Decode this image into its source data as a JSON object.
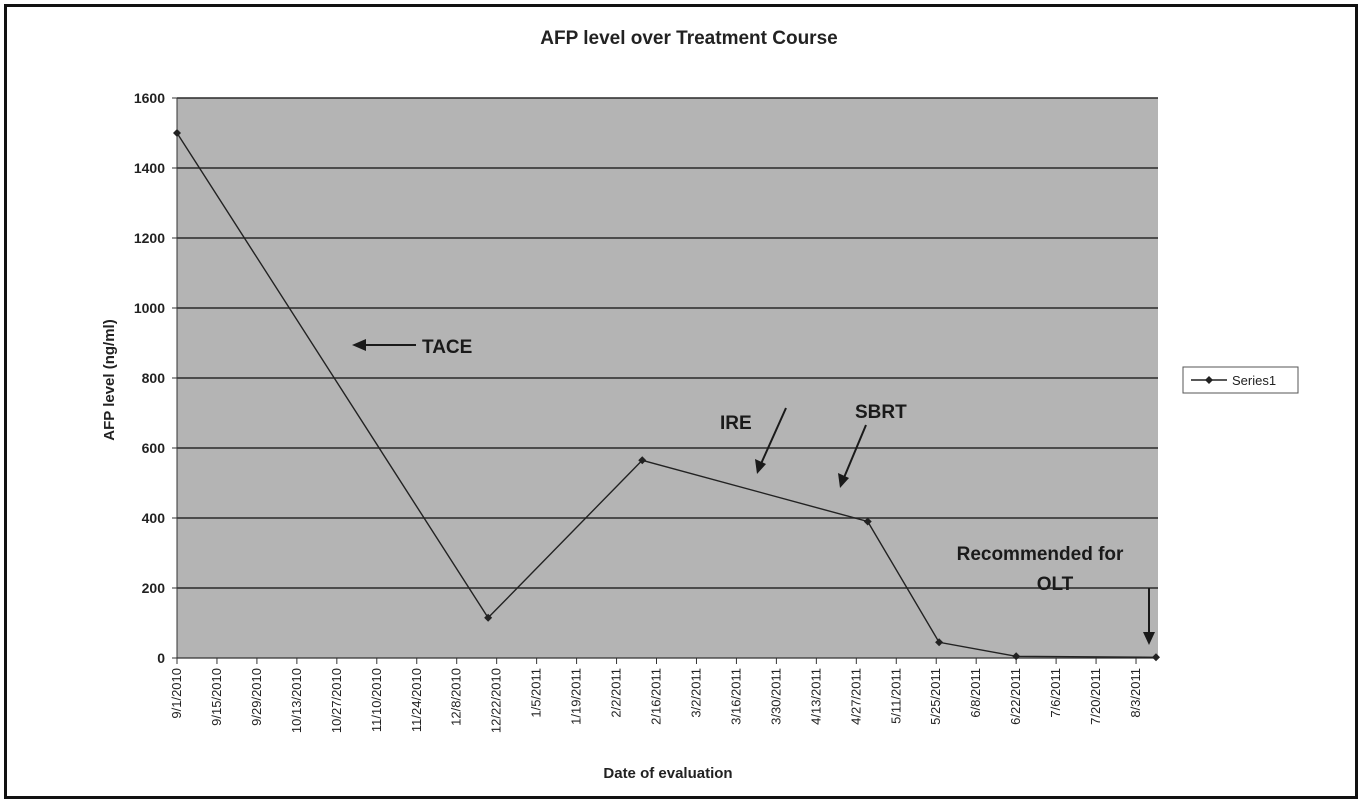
{
  "chart_data": {
    "type": "line",
    "title": "AFP level over Treatment Course",
    "xlabel": "Date of evaluation",
    "ylabel": "AFP level (ng/ml)",
    "ylim": [
      0,
      1600
    ],
    "yticks": [
      0,
      200,
      400,
      600,
      800,
      1000,
      1200,
      1400,
      1600
    ],
    "x_tick_labels": [
      "9/1/2010",
      "9/15/2010",
      "9/29/2010",
      "10/13/2010",
      "10/27/2010",
      "11/10/2010",
      "11/24/2010",
      "12/8/2010",
      "12/22/2010",
      "1/5/2011",
      "1/19/2011",
      "2/2/2011",
      "2/16/2011",
      "3/2/2011",
      "3/16/2011",
      "3/30/2011",
      "4/13/2011",
      "4/27/2011",
      "5/11/2011",
      "5/25/2011",
      "6/8/2011",
      "6/22/2011",
      "7/6/2011",
      "7/20/2011",
      "8/3/2011"
    ],
    "grid": true,
    "legend_position": "right",
    "series": [
      {
        "name": "Series1",
        "color": "#222222",
        "x": [
          "2010-09-01",
          "2010-12-19",
          "2011-02-11",
          "2011-05-01",
          "2011-05-26",
          "2011-06-22",
          "2011-08-10"
        ],
        "y": [
          1500,
          115,
          565,
          390,
          45,
          5,
          2
        ]
      }
    ],
    "annotations": [
      {
        "text": "TACE"
      },
      {
        "text": "IRE"
      },
      {
        "text": "SBRT"
      },
      {
        "text": "Recommended for"
      },
      {
        "text": "OLT"
      }
    ]
  },
  "colors": {
    "plot_background": "#b4b4b4",
    "gridline": "#2a2a2a",
    "line": "#222222",
    "frame": "#111111"
  }
}
